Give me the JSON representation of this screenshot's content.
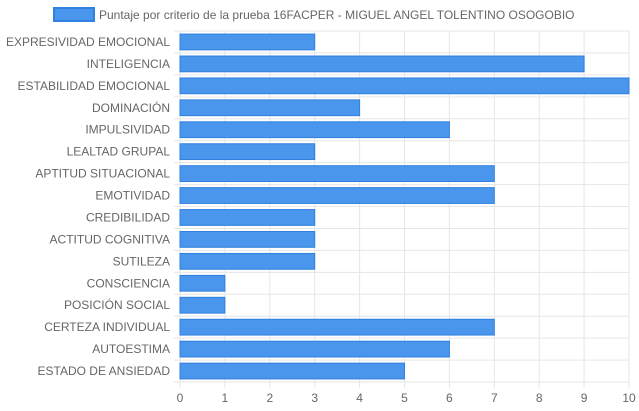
{
  "chart_data": {
    "type": "bar",
    "orientation": "horizontal",
    "legend": {
      "label": "Puntaje por criterio de la prueba 16FACPER - MIGUEL ANGEL TOLENTINO OSOGOBIO",
      "position": "top"
    },
    "categories": [
      "EXPRESIVIDAD EMOCIONAL",
      "INTELIGENCIA",
      "ESTABILIDAD EMOCIONAL",
      "DOMINACIÓN",
      "IMPULSIVIDAD",
      "LEALTAD GRUPAL",
      "APTITUD SITUACIONAL",
      "EMOTIVIDAD",
      "CREDIBILIDAD",
      "ACTITUD COGNITIVA",
      "SUTILEZA",
      "CONSCIENCIA",
      "POSICIÓN SOCIAL",
      "CERTEZA INDIVIDUAL",
      "AUTOESTIMA",
      "ESTADO DE ANSIEDAD"
    ],
    "series": [
      {
        "name": "Puntaje por criterio de la prueba 16FACPER - MIGUEL ANGEL TOLENTINO OSOGOBIO",
        "values": [
          3,
          9,
          10,
          4,
          6,
          3,
          7,
          7,
          3,
          3,
          3,
          1,
          1,
          7,
          6,
          5
        ]
      }
    ],
    "xlim": [
      0,
      10
    ],
    "xticks": [
      "0",
      "1",
      "2",
      "3",
      "4",
      "5",
      "6",
      "7",
      "8",
      "9",
      "10"
    ],
    "grid": true,
    "colors": {
      "bar_fill": "#4a96ec",
      "bar_stroke": "#2f80e0",
      "grid": "#e6e6e6",
      "text": "#666666"
    }
  }
}
